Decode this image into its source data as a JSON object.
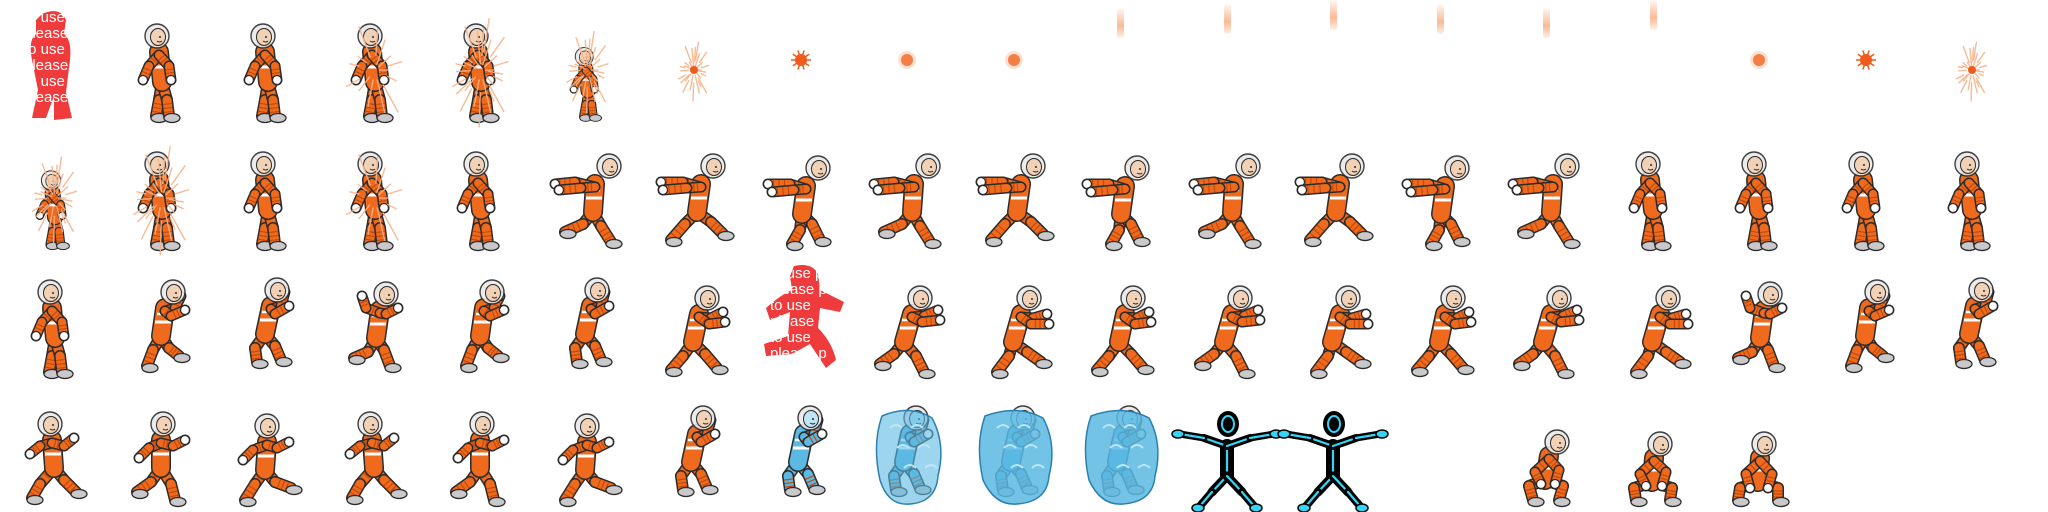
{
  "sheet": {
    "rows": 4,
    "columns": 19,
    "background": "#ffffff"
  },
  "palette": {
    "suit": "#ef6a1c",
    "suit_dark": "#c24a0c",
    "suit_stripe": "#ffffff",
    "helmet": "#e9e9ea",
    "boot": "#c9c9cb",
    "skin": "#f2d2b6",
    "hair": "#3a2218",
    "outline": "#2b2b2b",
    "watermark": "#ef3b3b",
    "ice": "#5bb9e3",
    "ice_light": "#bfe6f7",
    "xray_body": "#000000",
    "xray_bone": "#35d6f5",
    "explosion": "#f05a1a",
    "glow": "#f7b38a"
  },
  "watermark_text": [
    "to use p",
    "please p",
    "to use",
    "please p",
    "to use",
    "please p"
  ],
  "frames": [
    [
      {
        "pose": "watermark"
      },
      {
        "pose": "stand"
      },
      {
        "pose": "stand"
      },
      {
        "pose": "stand",
        "sparks": 1
      },
      {
        "pose": "stand",
        "sparks": 2
      },
      {
        "pose": "stand",
        "sparks": 2,
        "shrink": 0.75
      },
      {
        "pose": "burst",
        "size": "small"
      },
      {
        "pose": "burst",
        "size": "dot"
      },
      {
        "pose": "dot"
      },
      {
        "pose": "dot"
      },
      {
        "pose": "beam",
        "offset": 0
      },
      {
        "pose": "beam",
        "offset": 1
      },
      {
        "pose": "beam",
        "offset": 2
      },
      {
        "pose": "beam",
        "offset": 1
      },
      {
        "pose": "beam",
        "offset": 0
      },
      {
        "pose": "beam",
        "offset": 2
      },
      {
        "pose": "dot"
      },
      {
        "pose": "burst",
        "size": "dot"
      },
      {
        "pose": "burst",
        "size": "small"
      }
    ],
    [
      {
        "pose": "stand",
        "sparks": 2,
        "shrink": 0.8
      },
      {
        "pose": "stand",
        "sparks": 2
      },
      {
        "pose": "stand"
      },
      {
        "pose": "stand",
        "sparks": 1
      },
      {
        "pose": "stand"
      },
      {
        "pose": "run_reach",
        "step": 0
      },
      {
        "pose": "run_reach",
        "step": 1
      },
      {
        "pose": "run_reach",
        "step": 2
      },
      {
        "pose": "run_reach",
        "step": 0
      },
      {
        "pose": "run_reach",
        "step": 1
      },
      {
        "pose": "run_reach",
        "step": 2
      },
      {
        "pose": "run_reach",
        "step": 0
      },
      {
        "pose": "run_reach",
        "step": 1
      },
      {
        "pose": "run_reach",
        "step": 2
      },
      {
        "pose": "run_reach",
        "step": 0
      },
      {
        "pose": "stand"
      },
      {
        "pose": "stand"
      },
      {
        "pose": "stand"
      },
      {
        "pose": "stand"
      }
    ],
    [
      {
        "pose": "stand"
      },
      {
        "pose": "jump",
        "step": 0
      },
      {
        "pose": "jump",
        "step": 1
      },
      {
        "pose": "jump",
        "step": 2
      },
      {
        "pose": "jump",
        "step": 0
      },
      {
        "pose": "jump",
        "step": 1
      },
      {
        "pose": "run_push",
        "step": 0
      },
      {
        "pose": "watermark_run"
      },
      {
        "pose": "run_push",
        "step": 1
      },
      {
        "pose": "run_push",
        "step": 2
      },
      {
        "pose": "run_push",
        "step": 0
      },
      {
        "pose": "run_push",
        "step": 1
      },
      {
        "pose": "run_push",
        "step": 2
      },
      {
        "pose": "run_push",
        "step": 0
      },
      {
        "pose": "run_push",
        "step": 1
      },
      {
        "pose": "run_push",
        "step": 2
      },
      {
        "pose": "jump",
        "step": 2
      },
      {
        "pose": "jump",
        "step": 0
      },
      {
        "pose": "jump",
        "step": 1
      }
    ],
    [
      {
        "pose": "run_fast",
        "step": 0
      },
      {
        "pose": "run_fast",
        "step": 1
      },
      {
        "pose": "run_fast",
        "step": 2
      },
      {
        "pose": "run_fast",
        "step": 0
      },
      {
        "pose": "run_fast",
        "step": 1
      },
      {
        "pose": "run_fast",
        "step": 2
      },
      {
        "pose": "jump",
        "step": 1
      },
      {
        "pose": "freeze",
        "level": 1
      },
      {
        "pose": "freeze",
        "level": 2
      },
      {
        "pose": "freeze",
        "level": 3
      },
      {
        "pose": "freeze",
        "level": 3
      },
      {
        "pose": "xray"
      },
      {
        "pose": "xray"
      },
      {
        "pose": "empty"
      },
      {
        "pose": "crouch",
        "step": 0
      },
      {
        "pose": "crouch",
        "step": 1
      },
      {
        "pose": "crouch",
        "step": 2
      },
      {
        "pose": "empty"
      },
      {
        "pose": "empty"
      }
    ]
  ]
}
